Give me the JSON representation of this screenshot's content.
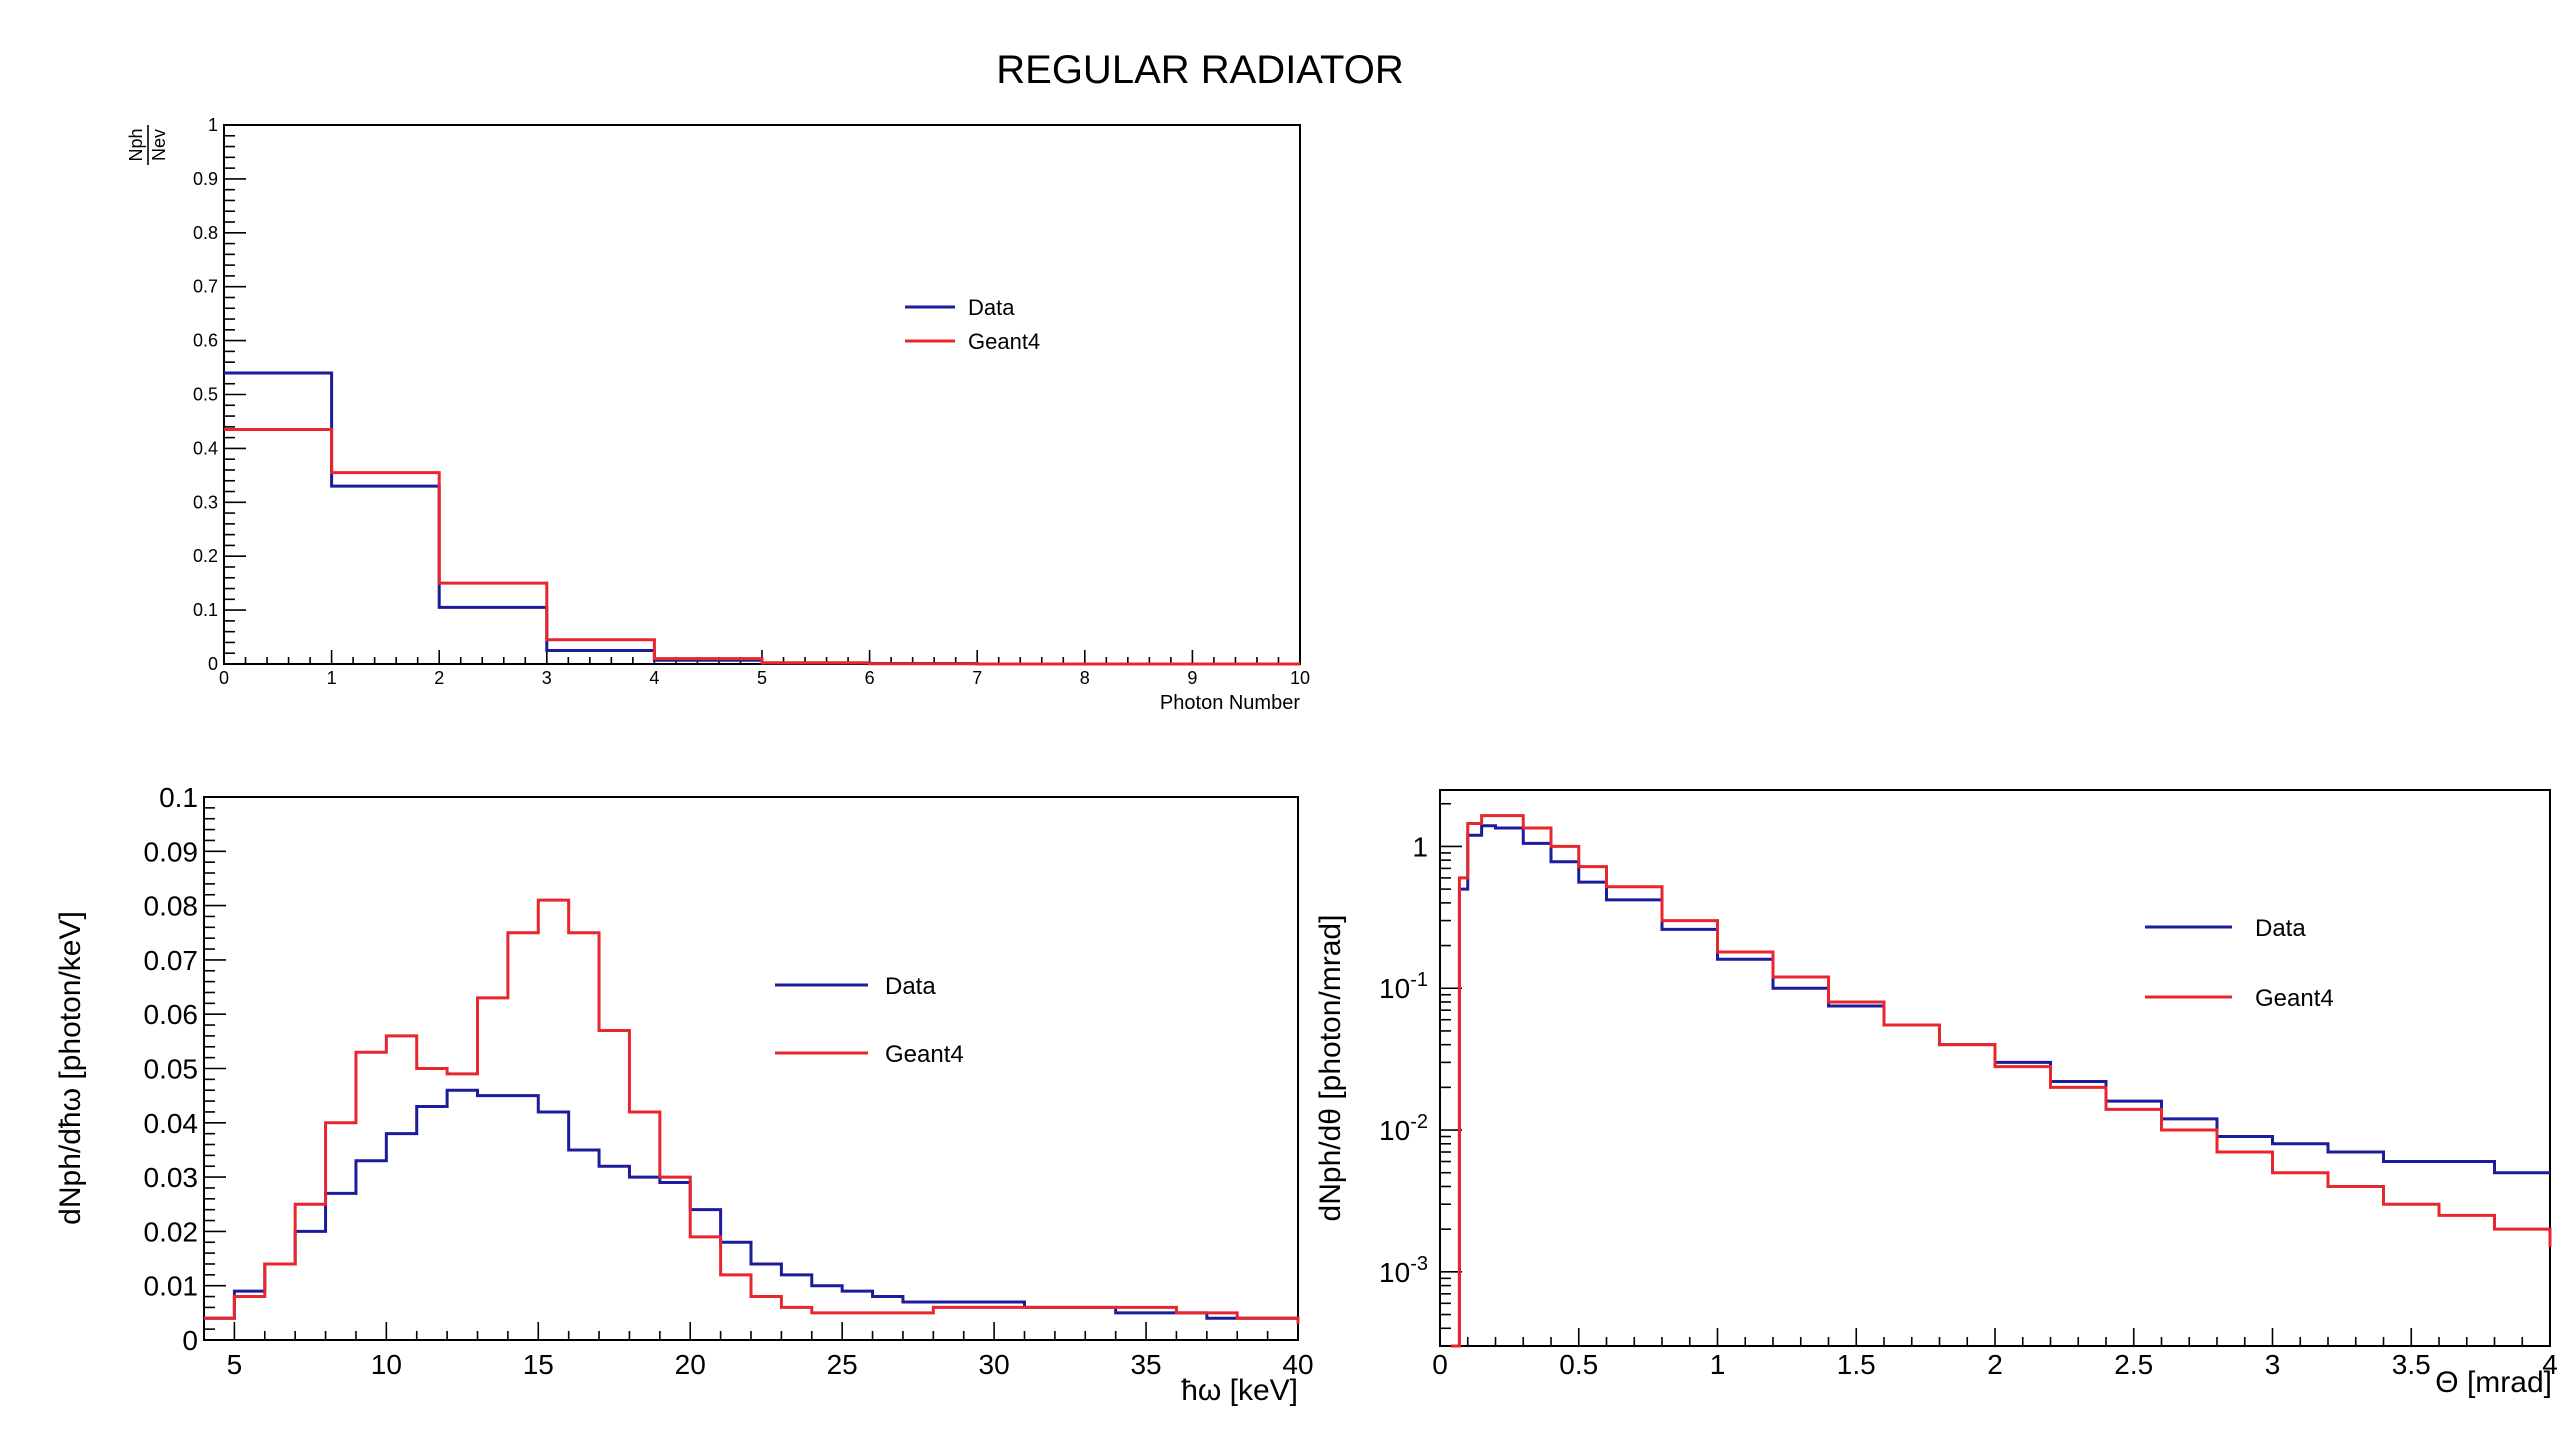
{
  "page": {
    "title": "REGULAR RADIATOR"
  },
  "colors": {
    "data": "#1c1c9c",
    "geant4": "#e8262e"
  },
  "chart_data": [
    {
      "type": "histogram",
      "xlabel": "Photon Number",
      "ylabel_num": "Nph",
      "ylabel_den": "Nev",
      "xlim": [
        0,
        10
      ],
      "ylim": [
        0,
        1
      ],
      "x_ticks": [
        "0",
        "1",
        "2",
        "3",
        "4",
        "5",
        "6",
        "7",
        "8",
        "9",
        "10"
      ],
      "y_ticks": [
        "0",
        "0.1",
        "0.2",
        "0.3",
        "0.4",
        "0.5",
        "0.6",
        "0.7",
        "0.8",
        "0.9",
        "1"
      ],
      "legend": "top-center",
      "bin_edges": [
        0,
        1,
        2,
        3,
        4,
        5,
        6,
        7,
        8,
        9,
        10
      ],
      "series": [
        {
          "name": "Data",
          "values": [
            0.54,
            0.33,
            0.105,
            0.025,
            0.007,
            0.002,
            0.001,
            0.0,
            0.0,
            0.0
          ]
        },
        {
          "name": "Geant4",
          "values": [
            0.435,
            0.355,
            0.15,
            0.045,
            0.01,
            0.002,
            0.0005,
            0.0,
            0.0,
            0.0
          ]
        }
      ]
    },
    {
      "type": "histogram",
      "xlabel": "ħω  [keV]",
      "ylabel": "dNph/dħω [photon/keV]",
      "xlim": [
        4,
        40
      ],
      "ylim": [
        0,
        0.1
      ],
      "x_ticks": [
        "5",
        "10",
        "15",
        "20",
        "25",
        "30",
        "35",
        "40"
      ],
      "y_ticks": [
        "0",
        "0.01",
        "0.02",
        "0.03",
        "0.04",
        "0.05",
        "0.06",
        "0.07",
        "0.08",
        "0.09",
        "0.1"
      ],
      "legend": "top-right",
      "x": [
        4,
        5,
        6,
        7,
        8,
        9,
        10,
        11,
        12,
        13,
        14,
        15,
        16,
        17,
        18,
        19,
        20,
        21,
        22,
        23,
        24,
        25,
        26,
        27,
        28,
        29,
        30,
        31,
        32,
        33,
        34,
        35,
        36,
        37,
        38,
        39,
        40
      ],
      "series": [
        {
          "name": "Data",
          "values": [
            0.004,
            0.009,
            0.014,
            0.02,
            0.027,
            0.033,
            0.038,
            0.043,
            0.046,
            0.045,
            0.045,
            0.042,
            0.035,
            0.032,
            0.03,
            0.029,
            0.024,
            0.018,
            0.014,
            0.012,
            0.01,
            0.009,
            0.008,
            0.007,
            0.007,
            0.007,
            0.007,
            0.006,
            0.006,
            0.006,
            0.005,
            0.005,
            0.005,
            0.004,
            0.004,
            0.004,
            0.003
          ]
        },
        {
          "name": "Geant4",
          "values": [
            0.004,
            0.008,
            0.014,
            0.025,
            0.04,
            0.053,
            0.056,
            0.05,
            0.049,
            0.063,
            0.075,
            0.081,
            0.075,
            0.057,
            0.042,
            0.03,
            0.019,
            0.012,
            0.008,
            0.006,
            0.005,
            0.005,
            0.005,
            0.005,
            0.006,
            0.006,
            0.006,
            0.006,
            0.006,
            0.006,
            0.006,
            0.006,
            0.005,
            0.005,
            0.004,
            0.004,
            0.003
          ]
        }
      ]
    },
    {
      "type": "histogram",
      "yscale": "log",
      "xlabel": "Θ [mrad]",
      "ylabel": "dNph/dθ [photon/mrad]",
      "xlim": [
        0,
        4
      ],
      "ylim": [
        0.0003,
        2.5
      ],
      "x_ticks": [
        "0",
        "0.5",
        "1",
        "1.5",
        "2",
        "2.5",
        "3",
        "3.5",
        "4"
      ],
      "y_ticks": [
        "10^-3",
        "10^-2",
        "10^-1",
        "1"
      ],
      "legend": "top-right",
      "x": [
        0.04,
        0.07,
        0.1,
        0.15,
        0.2,
        0.3,
        0.4,
        0.5,
        0.6,
        0.8,
        1.0,
        1.2,
        1.4,
        1.6,
        1.8,
        2.0,
        2.2,
        2.4,
        2.6,
        2.8,
        3.0,
        3.2,
        3.4,
        3.6,
        3.8,
        4.0
      ],
      "series": [
        {
          "name": "Data",
          "values": [
            0.0003,
            0.5,
            1.2,
            1.4,
            1.35,
            1.05,
            0.78,
            0.56,
            0.42,
            0.26,
            0.16,
            0.1,
            0.075,
            0.055,
            0.04,
            0.03,
            0.022,
            0.016,
            0.012,
            0.009,
            0.008,
            0.007,
            0.006,
            0.006,
            0.005,
            0.005
          ]
        },
        {
          "name": "Geant4",
          "values": [
            0.0003,
            0.6,
            1.45,
            1.65,
            1.65,
            1.35,
            1.0,
            0.72,
            0.52,
            0.3,
            0.18,
            0.12,
            0.08,
            0.055,
            0.04,
            0.028,
            0.02,
            0.014,
            0.01,
            0.007,
            0.005,
            0.004,
            0.003,
            0.0025,
            0.002,
            0.0015
          ]
        }
      ]
    }
  ]
}
